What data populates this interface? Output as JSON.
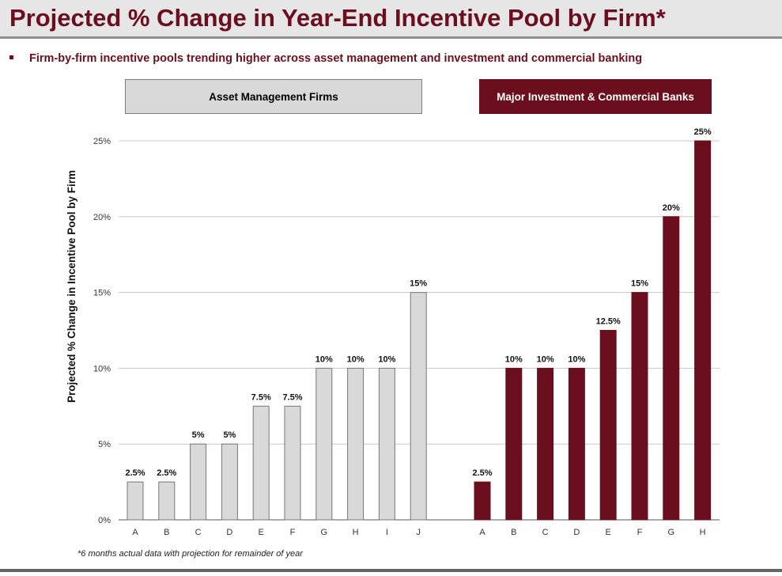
{
  "header": {
    "title": "Projected % Change in Year-End Incentive Pool by Firm*",
    "bullet": "Firm-by-firm incentive pools trending higher across asset management and investment and commercial banking"
  },
  "footnote": "*6 months actual data with projection for remainder of year",
  "colors": {
    "brand": "#6b0f1e",
    "asset_bar": "#d9d9d9",
    "bank_bar": "#6b0f1e"
  },
  "chart_data": {
    "type": "bar",
    "title": "Projected % Change in Year-End Incentive Pool by Firm*",
    "ylabel": "Projected % Change in Incentive Pool by Firm",
    "xlabel": "",
    "ylim": [
      0,
      25
    ],
    "yticks": [
      "0%",
      "5%",
      "10%",
      "15%",
      "20%",
      "25%"
    ],
    "grid": true,
    "groups": [
      {
        "name": "Asset Management Firms",
        "categories": [
          "A",
          "B",
          "C",
          "D",
          "E",
          "F",
          "G",
          "H",
          "I",
          "J"
        ],
        "values": [
          2.5,
          2.5,
          5,
          5,
          7.5,
          7.5,
          10,
          10,
          10,
          15
        ],
        "labels": [
          "2.5%",
          "2.5%",
          "5%",
          "5%",
          "7.5%",
          "7.5%",
          "10%",
          "10%",
          "10%",
          "15%"
        ],
        "color": "#d9d9d9"
      },
      {
        "name": "Major Investment & Commercial Banks",
        "categories": [
          "A",
          "B",
          "C",
          "D",
          "E",
          "F",
          "G",
          "H"
        ],
        "values": [
          2.5,
          10,
          10,
          10,
          12.5,
          15,
          20,
          25
        ],
        "labels": [
          "2.5%",
          "10%",
          "10%",
          "10%",
          "12.5%",
          "15%",
          "20%",
          "25%"
        ],
        "color": "#6b0f1e"
      }
    ]
  }
}
